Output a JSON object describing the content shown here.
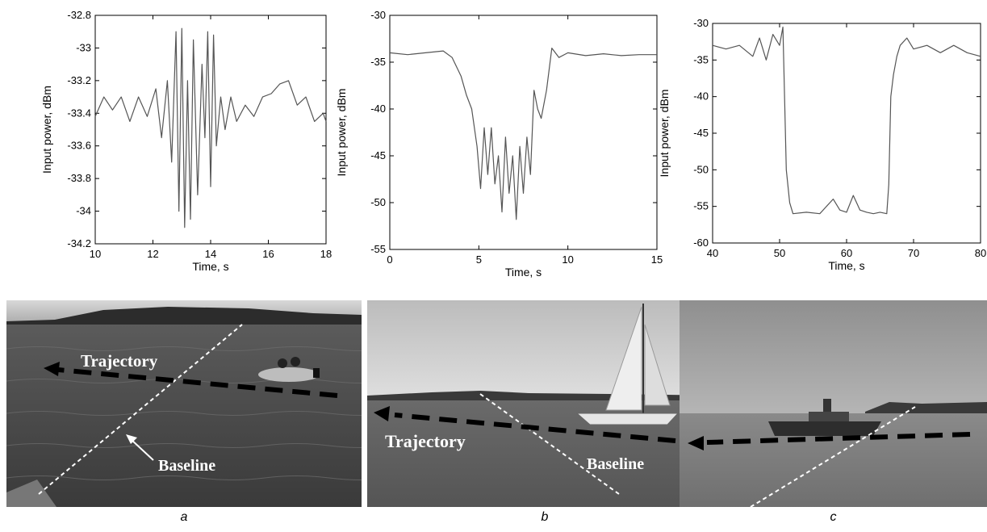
{
  "chart_data": [
    {
      "type": "line",
      "title": "",
      "xlabel": "Time, s",
      "ylabel": "Input power, dBm",
      "xlim": [
        10,
        18
      ],
      "ylim": [
        -34.2,
        -32.8
      ],
      "xticks": [
        10,
        12,
        14,
        16,
        18
      ],
      "yticks": [
        -32.8,
        -33,
        -33.2,
        -33.4,
        -33.6,
        -33.8,
        -34,
        -34.2
      ],
      "grid": false,
      "series": [
        {
          "values_x": [
            10,
            10.3,
            10.6,
            10.9,
            11.2,
            11.5,
            11.8,
            12.1,
            12.3,
            12.5,
            12.65,
            12.8,
            12.9,
            13.0,
            13.1,
            13.2,
            13.3,
            13.4,
            13.55,
            13.7,
            13.8,
            13.9,
            14.0,
            14.1,
            14.2,
            14.35,
            14.5,
            14.7,
            14.9,
            15.2,
            15.5,
            15.8,
            16.1,
            16.4,
            16.7,
            17.0,
            17.3,
            17.6,
            17.9,
            18
          ],
          "values_y": [
            -33.42,
            -33.3,
            -33.38,
            -33.3,
            -33.45,
            -33.3,
            -33.42,
            -33.25,
            -33.55,
            -33.2,
            -33.7,
            -32.9,
            -34.0,
            -32.88,
            -34.1,
            -33.2,
            -34.05,
            -32.95,
            -33.9,
            -33.1,
            -33.55,
            -32.9,
            -33.85,
            -32.92,
            -33.6,
            -33.3,
            -33.5,
            -33.3,
            -33.45,
            -33.35,
            -33.42,
            -33.3,
            -33.28,
            -33.22,
            -33.2,
            -33.35,
            -33.3,
            -33.45,
            -33.4,
            -33.45
          ]
        }
      ]
    },
    {
      "type": "line",
      "title": "",
      "xlabel": "Time, s",
      "ylabel": "Input power, dBm",
      "xlim": [
        0,
        15
      ],
      "ylim": [
        -55,
        -30
      ],
      "xticks": [
        0,
        5,
        10,
        15
      ],
      "yticks": [
        -30,
        -35,
        -40,
        -45,
        -50,
        -55
      ],
      "grid": false,
      "series": [
        {
          "values_x": [
            0,
            1,
            2,
            3,
            3.5,
            4,
            4.3,
            4.6,
            4.9,
            5.1,
            5.3,
            5.5,
            5.7,
            5.9,
            6.1,
            6.3,
            6.5,
            6.7,
            6.9,
            7.1,
            7.3,
            7.5,
            7.7,
            7.9,
            8.1,
            8.3,
            8.5,
            8.8,
            9.1,
            9.5,
            10,
            11,
            12,
            13,
            14,
            15
          ],
          "values_y": [
            -34,
            -34.2,
            -34,
            -33.8,
            -34.5,
            -36.5,
            -38.5,
            -40,
            -44,
            -48.5,
            -42,
            -47,
            -42,
            -48,
            -45,
            -51,
            -43,
            -49,
            -45,
            -51.8,
            -44,
            -49,
            -43,
            -47,
            -38,
            -40,
            -41,
            -38,
            -33.5,
            -34.5,
            -34,
            -34.3,
            -34.1,
            -34.3,
            -34.2,
            -34.2
          ]
        }
      ]
    },
    {
      "type": "line",
      "title": "",
      "xlabel": "Time, s",
      "ylabel": "Input power, dBm",
      "xlim": [
        40,
        80
      ],
      "ylim": [
        -60,
        -30
      ],
      "xticks": [
        40,
        50,
        60,
        70,
        80
      ],
      "yticks": [
        -30,
        -35,
        -40,
        -45,
        -50,
        -55,
        -60
      ],
      "grid": false,
      "series": [
        {
          "values_x": [
            40,
            42,
            44,
            46,
            47,
            48,
            49,
            50,
            50.5,
            51,
            51.5,
            52,
            54,
            56,
            58,
            59,
            60,
            61,
            62,
            63,
            64,
            65,
            66,
            66.3,
            66.6,
            67,
            67.5,
            68,
            69,
            70,
            72,
            74,
            76,
            78,
            80
          ],
          "values_y": [
            -33,
            -33.5,
            -33,
            -34.5,
            -32,
            -35,
            -31.5,
            -33,
            -30.5,
            -50,
            -54.5,
            -56,
            -55.8,
            -56,
            -54,
            -55.5,
            -55.8,
            -53.5,
            -55.5,
            -55.8,
            -56,
            -55.8,
            -56,
            -52,
            -40,
            -37,
            -34.5,
            -33,
            -32,
            -33.5,
            -33,
            -34,
            -33,
            -34,
            -34.5
          ]
        }
      ]
    }
  ],
  "photos": [
    {
      "caption": "a",
      "trajectory_label": "Trajectory",
      "baseline_label": "Baseline"
    },
    {
      "caption": "b",
      "trajectory_label": "Trajectory",
      "baseline_label": "Baseline"
    },
    {
      "caption": "c"
    }
  ],
  "colors": {
    "line": "#555555",
    "axis": "#000000",
    "water": "#4a4a4a",
    "sky": "#c8c8c8"
  }
}
